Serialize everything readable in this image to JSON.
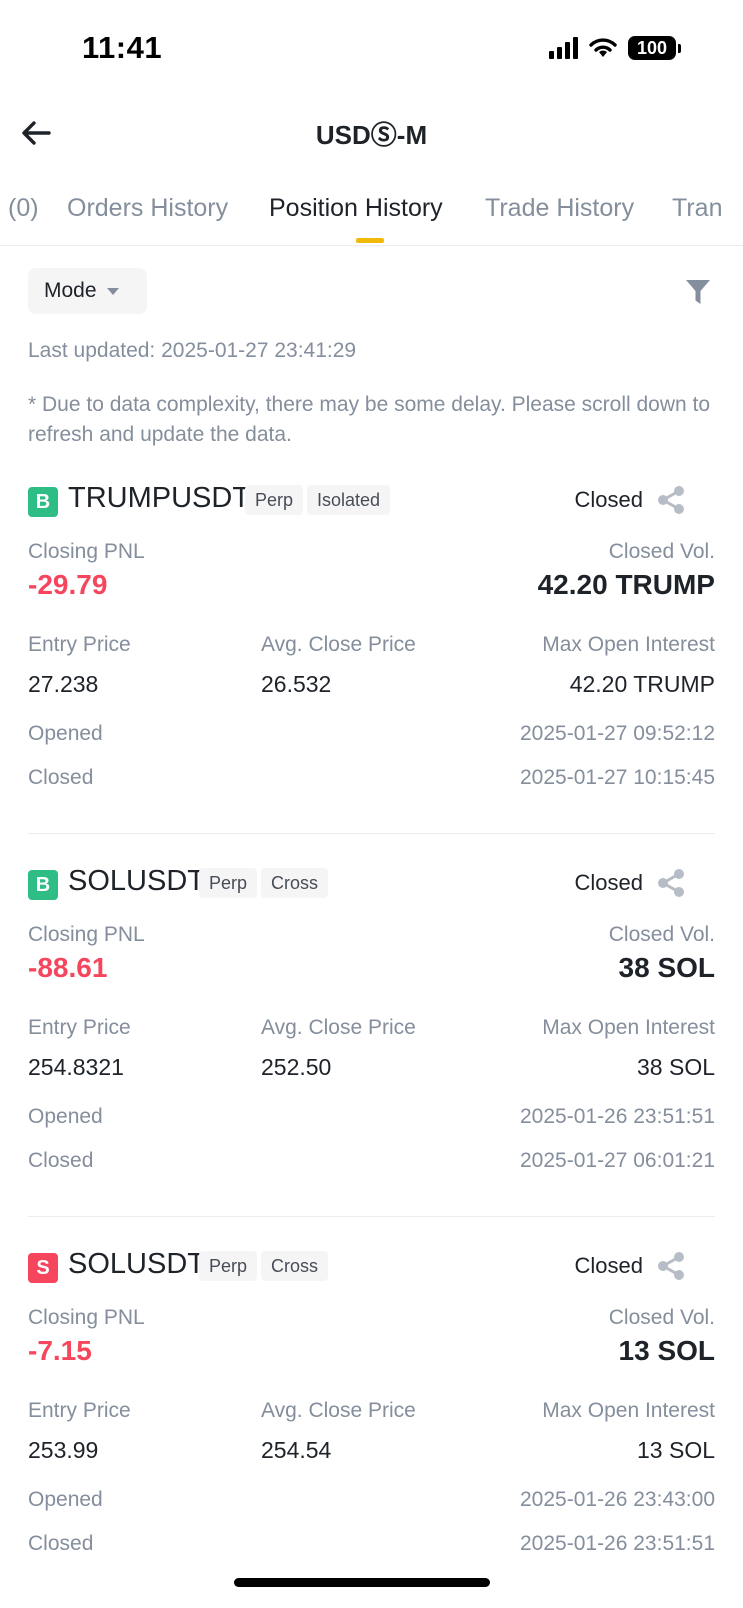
{
  "status_bar": {
    "time": "11:41",
    "battery": "100"
  },
  "nav": {
    "title": "USDⓈ-M"
  },
  "tabs": [
    {
      "label": "(0)"
    },
    {
      "label": "Orders History"
    },
    {
      "label": "Position History",
      "active": true
    },
    {
      "label": "Trade History"
    },
    {
      "label": "Tran"
    }
  ],
  "toolbar": {
    "mode_label": "Mode"
  },
  "last_updated": "Last updated: 2025-01-27 23:41:29",
  "notice": "* Due to data complexity, there may be some delay. Please scroll down to refresh and update the data.",
  "labels": {
    "closing_pnl": "Closing PNL",
    "closed_vol": "Closed Vol.",
    "entry_price": "Entry Price",
    "avg_close_price": "Avg. Close Price",
    "max_open_interest": "Max Open Interest",
    "opened": "Opened",
    "closed": "Closed"
  },
  "positions": [
    {
      "side": "B",
      "symbol": "TRUMPUSDT",
      "tags": [
        "Perp",
        "Isolated"
      ],
      "status": "Closed",
      "closing_pnl": "-29.79",
      "closed_vol": "42.20 TRUMP",
      "entry_price": "27.238",
      "avg_close_price": "26.532",
      "max_open_interest": "42.20 TRUMP",
      "opened": "2025-01-27 09:52:12",
      "closed": "2025-01-27 10:15:45"
    },
    {
      "side": "B",
      "symbol": "SOLUSDT",
      "tags": [
        "Perp",
        "Cross"
      ],
      "status": "Closed",
      "closing_pnl": "-88.61",
      "closed_vol": "38 SOL",
      "entry_price": "254.8321",
      "avg_close_price": "252.50",
      "max_open_interest": "38 SOL",
      "opened": "2025-01-26 23:51:51",
      "closed": "2025-01-27 06:01:21"
    },
    {
      "side": "S",
      "symbol": "SOLUSDT",
      "tags": [
        "Perp",
        "Cross"
      ],
      "status": "Closed",
      "closing_pnl": "-7.15",
      "closed_vol": "13 SOL",
      "entry_price": "253.99",
      "avg_close_price": "254.54",
      "max_open_interest": "13 SOL",
      "opened": "2025-01-26 23:43:00",
      "closed": "2025-01-26 23:51:51"
    }
  ],
  "colors": {
    "buy": "#2ebd85",
    "sell": "#f6465d",
    "negative_pnl": "#f6465d",
    "tab_indicator": "#f0b90b"
  },
  "icons": [
    "back-arrow-icon",
    "filter-icon",
    "share-icon",
    "signal-icon",
    "wifi-icon",
    "battery-icon"
  ]
}
